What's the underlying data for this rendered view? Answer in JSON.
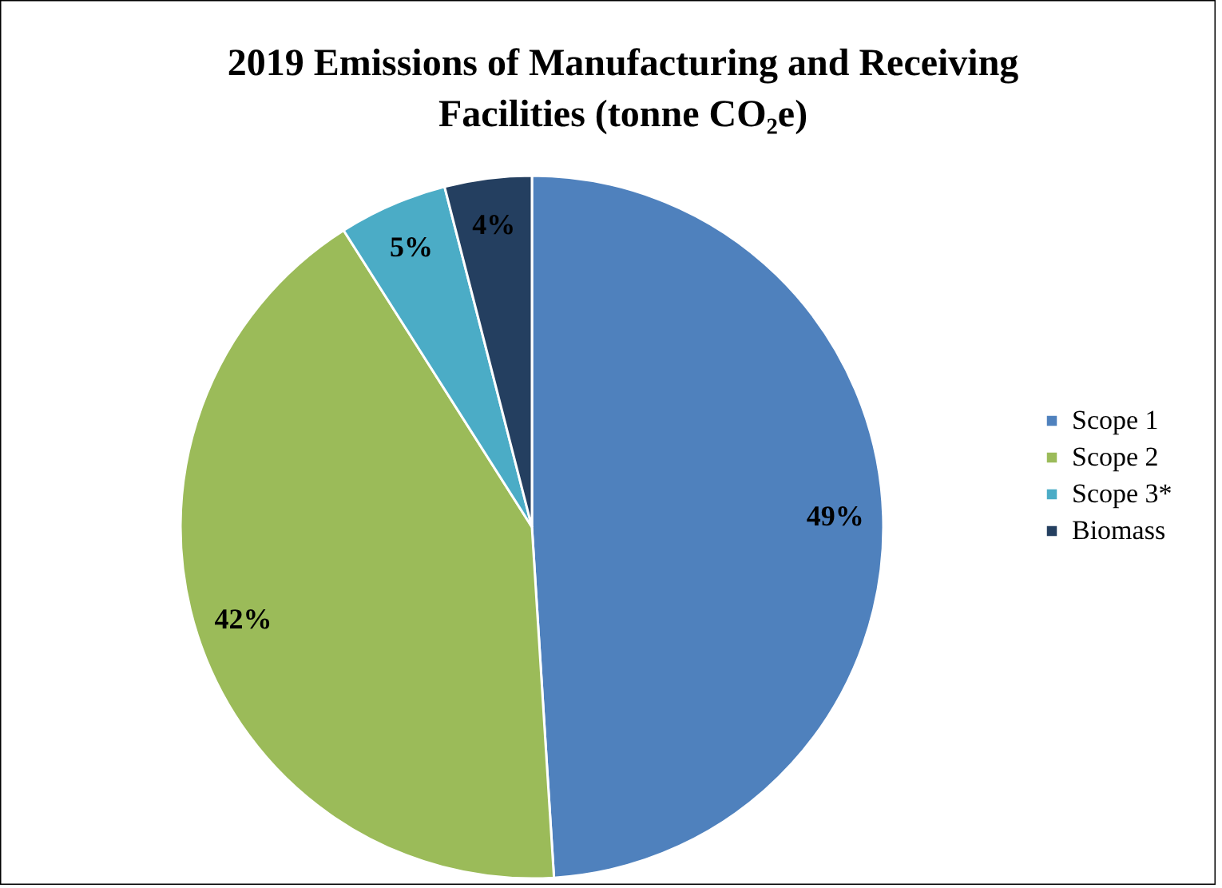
{
  "chart_data": {
    "type": "pie",
    "title": "2019 Emissions of Manufacturing and Receiving Facilities  (tonne CO₂e)",
    "categories": [
      "Scope 1",
      "Scope 2",
      "Scope 3*",
      "Biomass"
    ],
    "values": [
      49,
      42,
      5,
      4
    ],
    "colors": [
      "#4f81bd",
      "#9bbb59",
      "#4bacc6",
      "#243f60"
    ],
    "value_labels": [
      "49%",
      "42%",
      "5%",
      "4%"
    ],
    "legend": "right"
  }
}
